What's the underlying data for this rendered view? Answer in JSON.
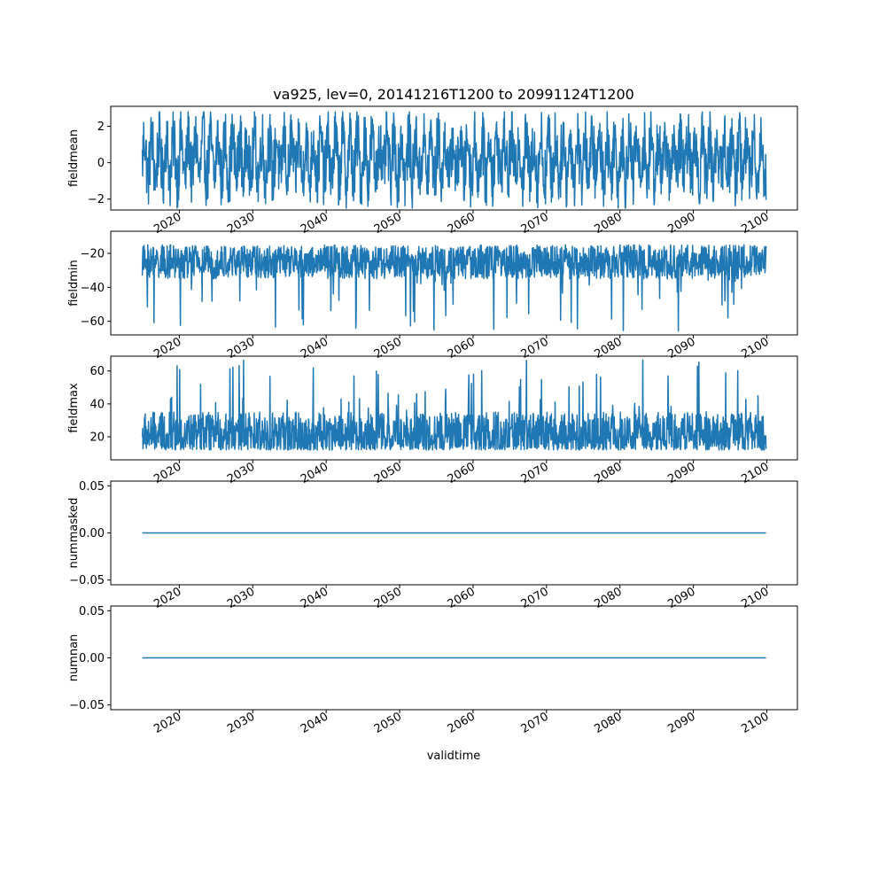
{
  "figure": {
    "title": "va925, lev=0, 20141216T1200 to 20991124T1200",
    "xlabel": "validtime",
    "line_color": "#1f77b4"
  },
  "chart_data": [
    {
      "type": "line",
      "ylabel": "fieldmean",
      "x_range": [
        "2014-12-16",
        "2099-11-24"
      ],
      "xlim": [
        "2010-09-01",
        "2104-03-01"
      ],
      "ylim": [
        -2.6,
        3.1
      ],
      "yticks": [
        -2,
        0,
        2
      ],
      "ytick_labels": [
        "−2",
        "0",
        "2"
      ],
      "xtick_labels": [
        "2020",
        "2030",
        "2040",
        "2050",
        "2060",
        "2070",
        "2080",
        "2090",
        "2100"
      ],
      "series_summary": {
        "typical_low": -1.2,
        "typical_high": 1.7,
        "min": -2.5,
        "max": 2.8
      }
    },
    {
      "type": "line",
      "ylabel": "fieldmin",
      "x_range": [
        "2014-12-16",
        "2099-11-24"
      ],
      "xlim": [
        "2010-09-01",
        "2104-03-01"
      ],
      "ylim": [
        -68,
        -7
      ],
      "yticks": [
        -60,
        -40,
        -20
      ],
      "ytick_labels": [
        "−60",
        "−40",
        "−20"
      ],
      "xtick_labels": [
        "2020",
        "2030",
        "2040",
        "2050",
        "2060",
        "2070",
        "2080",
        "2090",
        "2100"
      ],
      "series_summary": {
        "typical_low": -35,
        "typical_high": -15,
        "min": -66,
        "max": -11
      }
    },
    {
      "type": "line",
      "ylabel": "fieldmax",
      "x_range": [
        "2014-12-16",
        "2099-11-24"
      ],
      "xlim": [
        "2010-09-01",
        "2104-03-01"
      ],
      "ylim": [
        6,
        69
      ],
      "yticks": [
        20,
        40,
        60
      ],
      "ytick_labels": [
        "20",
        "40",
        "60"
      ],
      "xtick_labels": [
        "2020",
        "2030",
        "2040",
        "2050",
        "2060",
        "2070",
        "2080",
        "2090",
        "2100"
      ],
      "series_summary": {
        "typical_low": 12,
        "typical_high": 35,
        "min": 9,
        "max": 67
      }
    },
    {
      "type": "line",
      "ylabel": "nummasked",
      "x_range": [
        "2014-12-16",
        "2099-11-24"
      ],
      "xlim": [
        "2010-09-01",
        "2104-03-01"
      ],
      "ylim": [
        -0.055,
        0.055
      ],
      "yticks": [
        -0.05,
        0.0,
        0.05
      ],
      "ytick_labels": [
        "−0.05",
        "0.00",
        "0.05"
      ],
      "xtick_labels": [
        "2020",
        "2030",
        "2040",
        "2050",
        "2060",
        "2070",
        "2080",
        "2090",
        "2100"
      ],
      "constant_value": 0.0
    },
    {
      "type": "line",
      "ylabel": "numnan",
      "x_range": [
        "2014-12-16",
        "2099-11-24"
      ],
      "xlim": [
        "2010-09-01",
        "2104-03-01"
      ],
      "ylim": [
        -0.055,
        0.055
      ],
      "yticks": [
        -0.05,
        0.0,
        0.05
      ],
      "ytick_labels": [
        "−0.05",
        "0.00",
        "0.05"
      ],
      "xtick_labels": [
        "2020",
        "2030",
        "2040",
        "2050",
        "2060",
        "2070",
        "2080",
        "2090",
        "2100"
      ],
      "constant_value": 0.0
    }
  ]
}
